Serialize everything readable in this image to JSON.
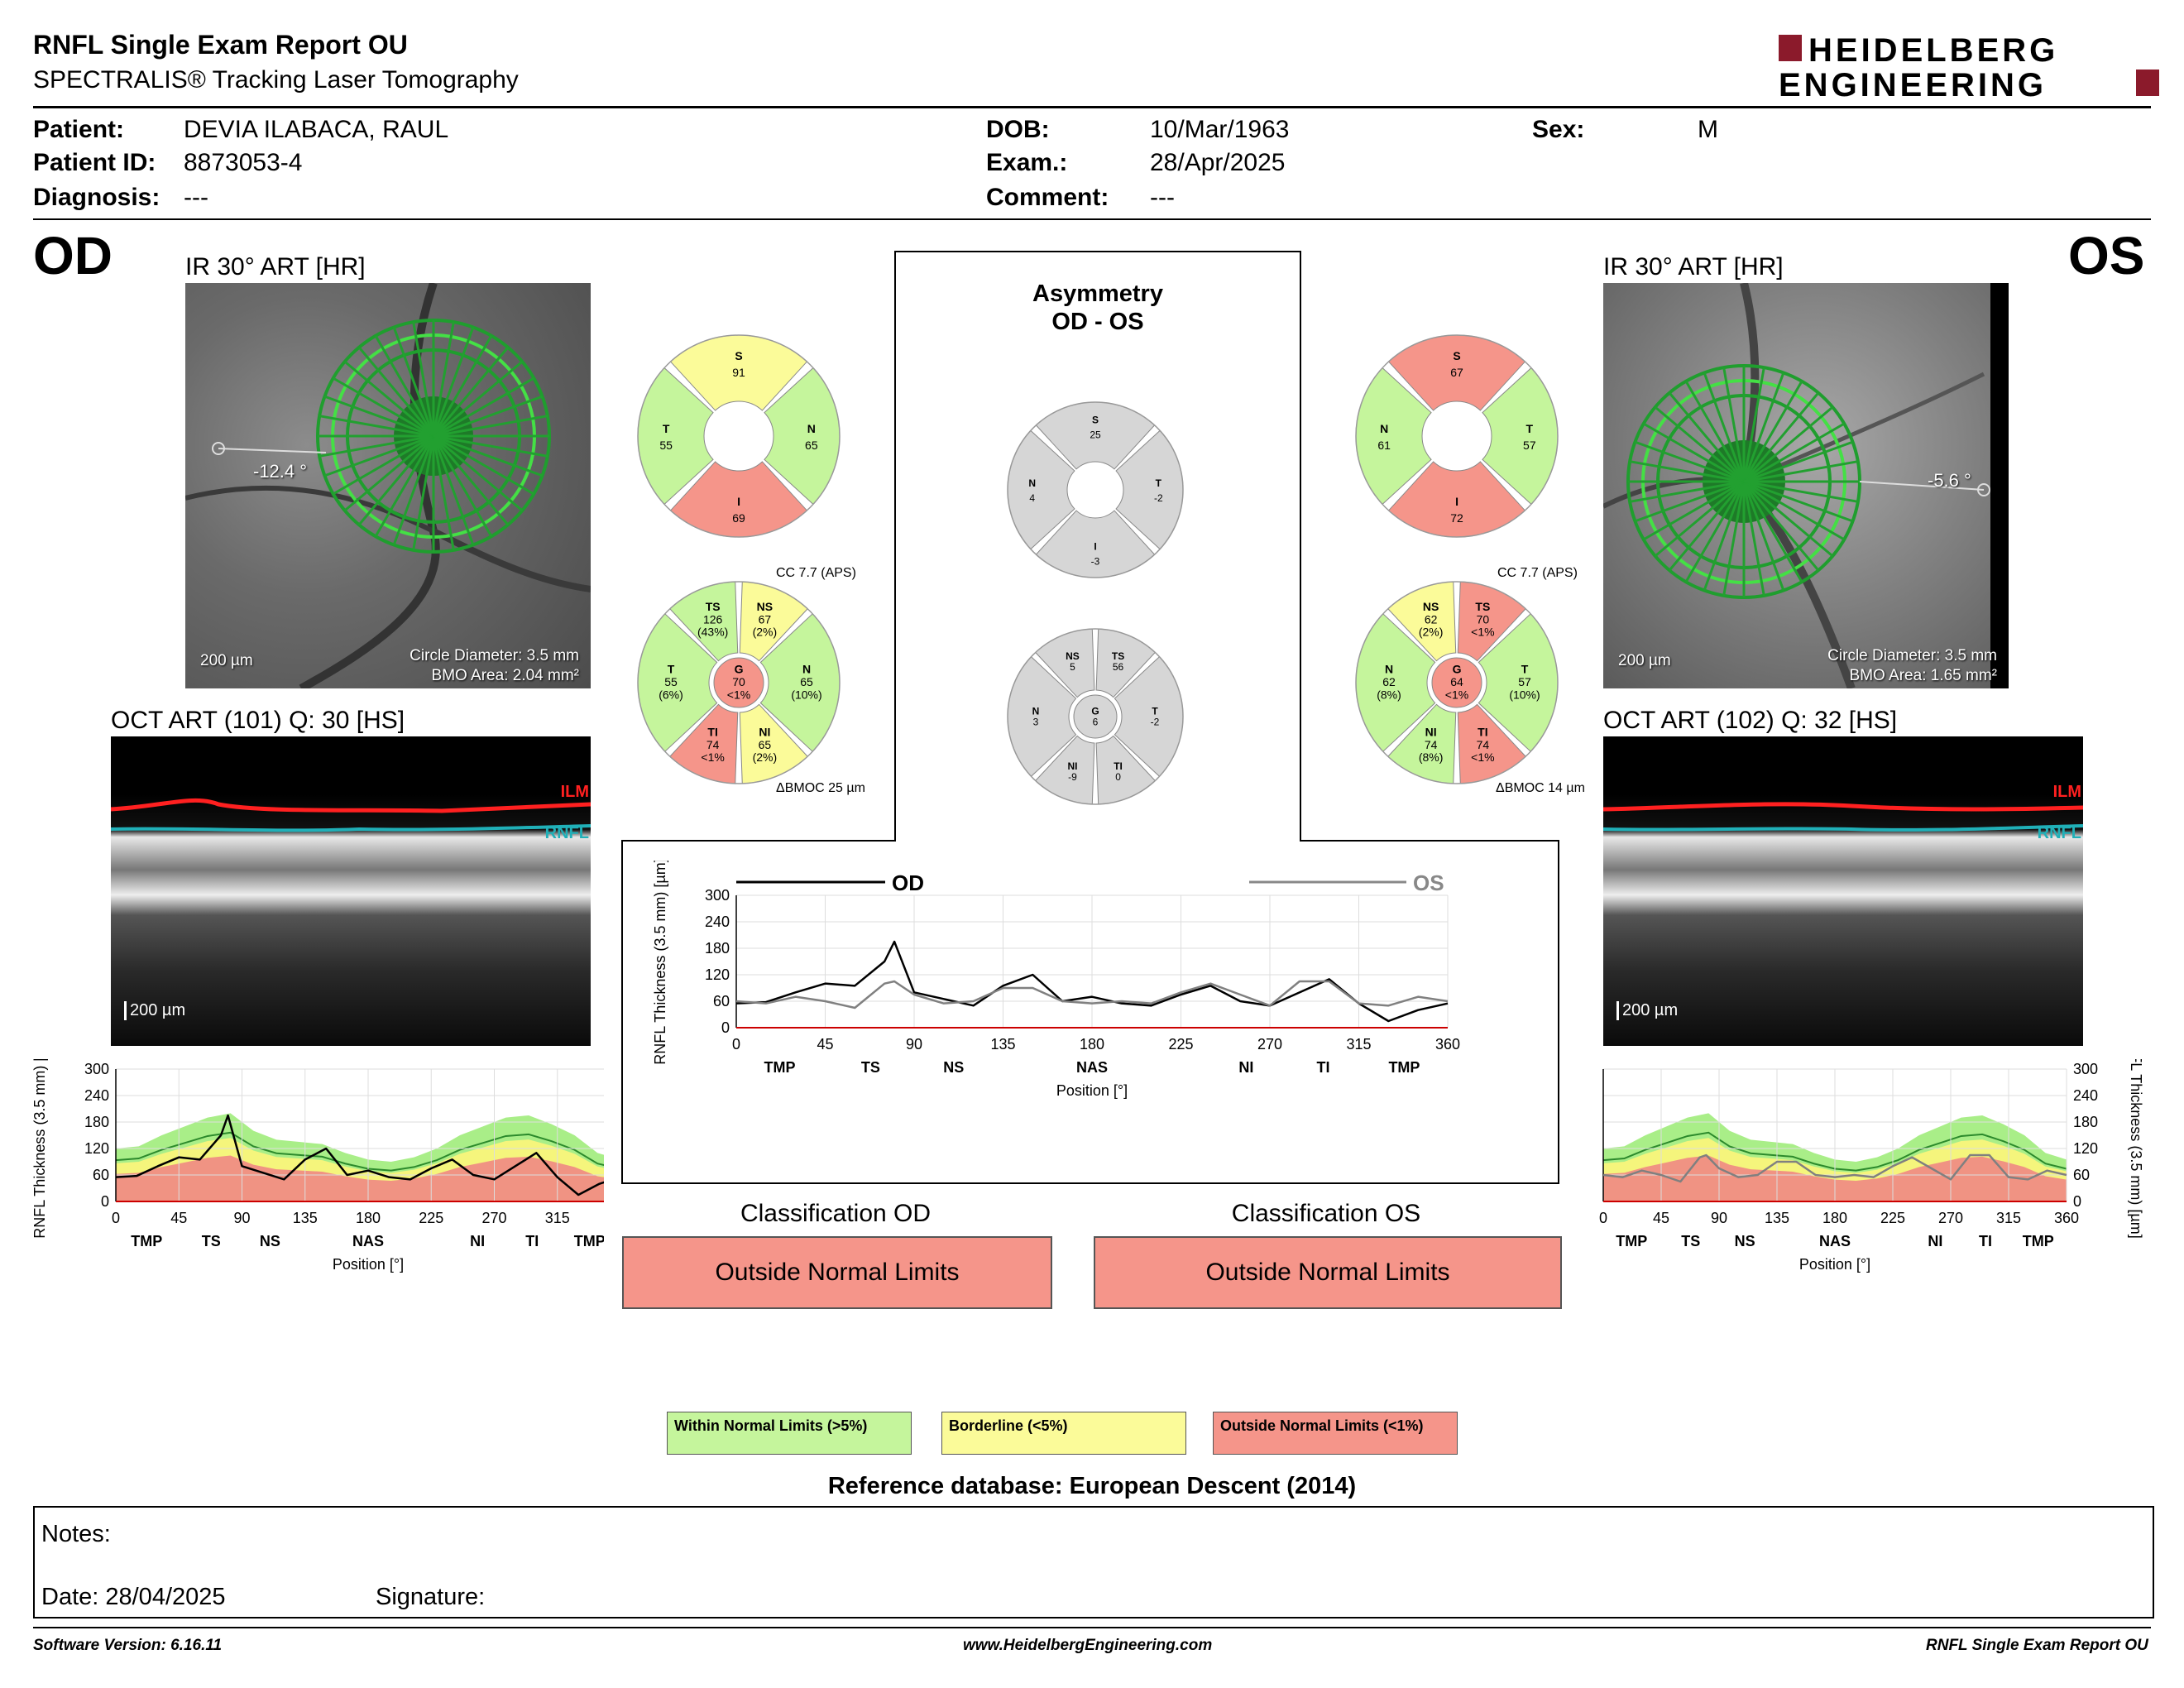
{
  "header": {
    "title": "RNFL Single Exam Report OU",
    "subtitle": "SPECTRALIS® Tracking Laser Tomography",
    "logo_line1": "HEIDELBERG",
    "logo_line2": "ENGINEERING"
  },
  "patient": {
    "patient_label": "Patient:",
    "patient_value": "DEVIA ILABACA, RAUL",
    "id_label": "Patient ID:",
    "id_value": "8873053-4",
    "diagnosis_label": "Diagnosis:",
    "diagnosis_value": "---",
    "dob_label": "DOB:",
    "dob_value": "10/Mar/1963",
    "exam_label": "Exam.:",
    "exam_value": "28/Apr/2025",
    "comment_label": "Comment:",
    "comment_value": "---",
    "sex_label": "Sex:",
    "sex_value": "M"
  },
  "od": {
    "eye": "OD",
    "ir_title": "IR 30° ART [HR]",
    "angle": "-12.4 °",
    "scale": "200 µm",
    "circle_diameter": "Circle Diameter: 3.5 mm",
    "bmo_area": "BMO Area: 2.04 mm²",
    "oct_title": "OCT ART (101) Q: 30 [HS]",
    "oct_scale": "200 µm",
    "ilm": "ILM",
    "rnfl": "RNFL",
    "sectors": {
      "S": "91",
      "T": "55",
      "N": "65",
      "I": "69"
    },
    "sector_colors": {
      "S": "#fbfb99",
      "T": "#c5f59c",
      "N": "#c5f59c",
      "I": "#f5958a"
    },
    "cc": "CC 7.7 (APS)",
    "detail": {
      "TS": [
        "TS",
        "126",
        "(43%)"
      ],
      "NS": [
        "NS",
        "67",
        "(2%)"
      ],
      "T": [
        "T",
        "55",
        "(6%)"
      ],
      "N": [
        "N",
        "65",
        "(10%)"
      ],
      "G": [
        "G",
        "70",
        "<1%"
      ],
      "TI": [
        "TI",
        "74",
        "<1%"
      ],
      "NI": [
        "NI",
        "65",
        "(2%)"
      ]
    },
    "detail_colors": {
      "TS": "#c5f59c",
      "NS": "#fbfb99",
      "T": "#c5f59c",
      "N": "#c5f59c",
      "G": "#f5958a",
      "TI": "#f5958a",
      "NI": "#fbfb99"
    },
    "bmoc": "ΔBMOC 25 µm"
  },
  "os": {
    "eye": "OS",
    "ir_title": "IR 30° ART [HR]",
    "angle": "-5.6 °",
    "scale": "200 µm",
    "circle_diameter": "Circle Diameter: 3.5 mm",
    "bmo_area": "BMO Area: 1.65 mm²",
    "oct_title": "OCT ART (102) Q: 32 [HS]",
    "oct_scale": "200 µm",
    "ilm": "ILM",
    "rnfl": "RNFL",
    "sectors": {
      "S": "67",
      "N": "61",
      "T": "57",
      "I": "72"
    },
    "sector_colors": {
      "S": "#f5958a",
      "N": "#c5f59c",
      "T": "#c5f59c",
      "I": "#f5958a"
    },
    "cc": "CC 7.7 (APS)",
    "detail": {
      "NS": [
        "NS",
        "62",
        "(2%)"
      ],
      "TS": [
        "TS",
        "70",
        "<1%"
      ],
      "N": [
        "N",
        "62",
        "(8%)"
      ],
      "T": [
        "T",
        "57",
        "(10%)"
      ],
      "G": [
        "G",
        "64",
        "<1%"
      ],
      "NI": [
        "NI",
        "74",
        "(8%)"
      ],
      "TI": [
        "TI",
        "74",
        "<1%"
      ]
    },
    "detail_colors": {
      "NS": "#fbfb99",
      "TS": "#f5958a",
      "N": "#c5f59c",
      "T": "#c5f59c",
      "G": "#f5958a",
      "NI": "#c5f59c",
      "TI": "#f5958a"
    },
    "bmoc": "ΔBMOC 14 µm"
  },
  "asymmetry": {
    "title1": "Asymmetry",
    "title2": "OD - OS",
    "sectors": {
      "S": "25",
      "N": "4",
      "T": "-2",
      "I": "-3"
    },
    "detail": {
      "NS": "5",
      "TS": "56",
      "N": "3",
      "G": "6",
      "T": "-2",
      "NI": "-9",
      "TI": "0"
    },
    "detail_labels": {
      "NS": "NS",
      "TS": "TS",
      "N": "N",
      "G": "G",
      "T": "T",
      "NI": "NI",
      "TI": "TI"
    },
    "sector_labels": {
      "S": "S",
      "N": "N",
      "T": "T",
      "I": "I"
    }
  },
  "graph": {
    "legend_od": "OD",
    "legend_os": "OS",
    "ylabel": "RNFL Thickness (3.5 mm) [µm]",
    "xlabel": "Position [°]",
    "y_ticks": [
      "300",
      "240",
      "180",
      "120",
      "60",
      "0"
    ],
    "x_ticks": [
      "0",
      "45",
      "90",
      "135",
      "180",
      "225",
      "270",
      "315",
      "360"
    ],
    "regions": [
      "TMP",
      "TS",
      "NS",
      "NAS",
      "NI",
      "TI",
      "TMP"
    ]
  },
  "classification": {
    "od_title": "Classification OD",
    "od_value": "Outside Normal Limits",
    "os_title": "Classification OS",
    "os_value": "Outside Normal Limits"
  },
  "legend": {
    "within": "Within Normal Limits (>5%)",
    "borderline": "Borderline (<5%)",
    "outside": "Outside Normal Limits (<1%)",
    "colors": {
      "within": "#c5f59c",
      "borderline": "#fbfb99",
      "outside": "#f5958a"
    }
  },
  "reference": "Reference database: European Descent (2014)",
  "notes": {
    "notes_label": "Notes:",
    "date_label": "Date: 28/04/2025",
    "signature_label": "Signature:"
  },
  "footer": {
    "software": "Software Version: 6.16.11",
    "website": "www.HeidelbergEngineering.com",
    "report": "RNFL Single Exam Report OU"
  },
  "chart_data": [
    {
      "type": "line",
      "title": "",
      "xlabel": "Position [°]",
      "ylabel": "RNFL Thickness (3.5 mm) [µm]",
      "ylim": [
        0,
        300
      ],
      "xlim": [
        0,
        360
      ],
      "x": [
        0,
        15,
        30,
        45,
        60,
        75,
        80,
        90,
        105,
        120,
        135,
        150,
        165,
        180,
        195,
        210,
        225,
        240,
        255,
        270,
        285,
        300,
        315,
        330,
        345,
        360
      ],
      "series": [
        {
          "name": "OD",
          "color": "#000000",
          "values": [
            55,
            58,
            80,
            100,
            95,
            150,
            195,
            80,
            65,
            50,
            95,
            120,
            60,
            70,
            55,
            50,
            75,
            95,
            60,
            50,
            80,
            110,
            55,
            15,
            40,
            55
          ]
        },
        {
          "name": "OS",
          "color": "#808080",
          "values": [
            60,
            55,
            70,
            60,
            45,
            100,
            105,
            75,
            55,
            60,
            90,
            90,
            60,
            55,
            60,
            55,
            80,
            100,
            75,
            50,
            105,
            105,
            55,
            50,
            70,
            60
          ]
        }
      ]
    }
  ]
}
